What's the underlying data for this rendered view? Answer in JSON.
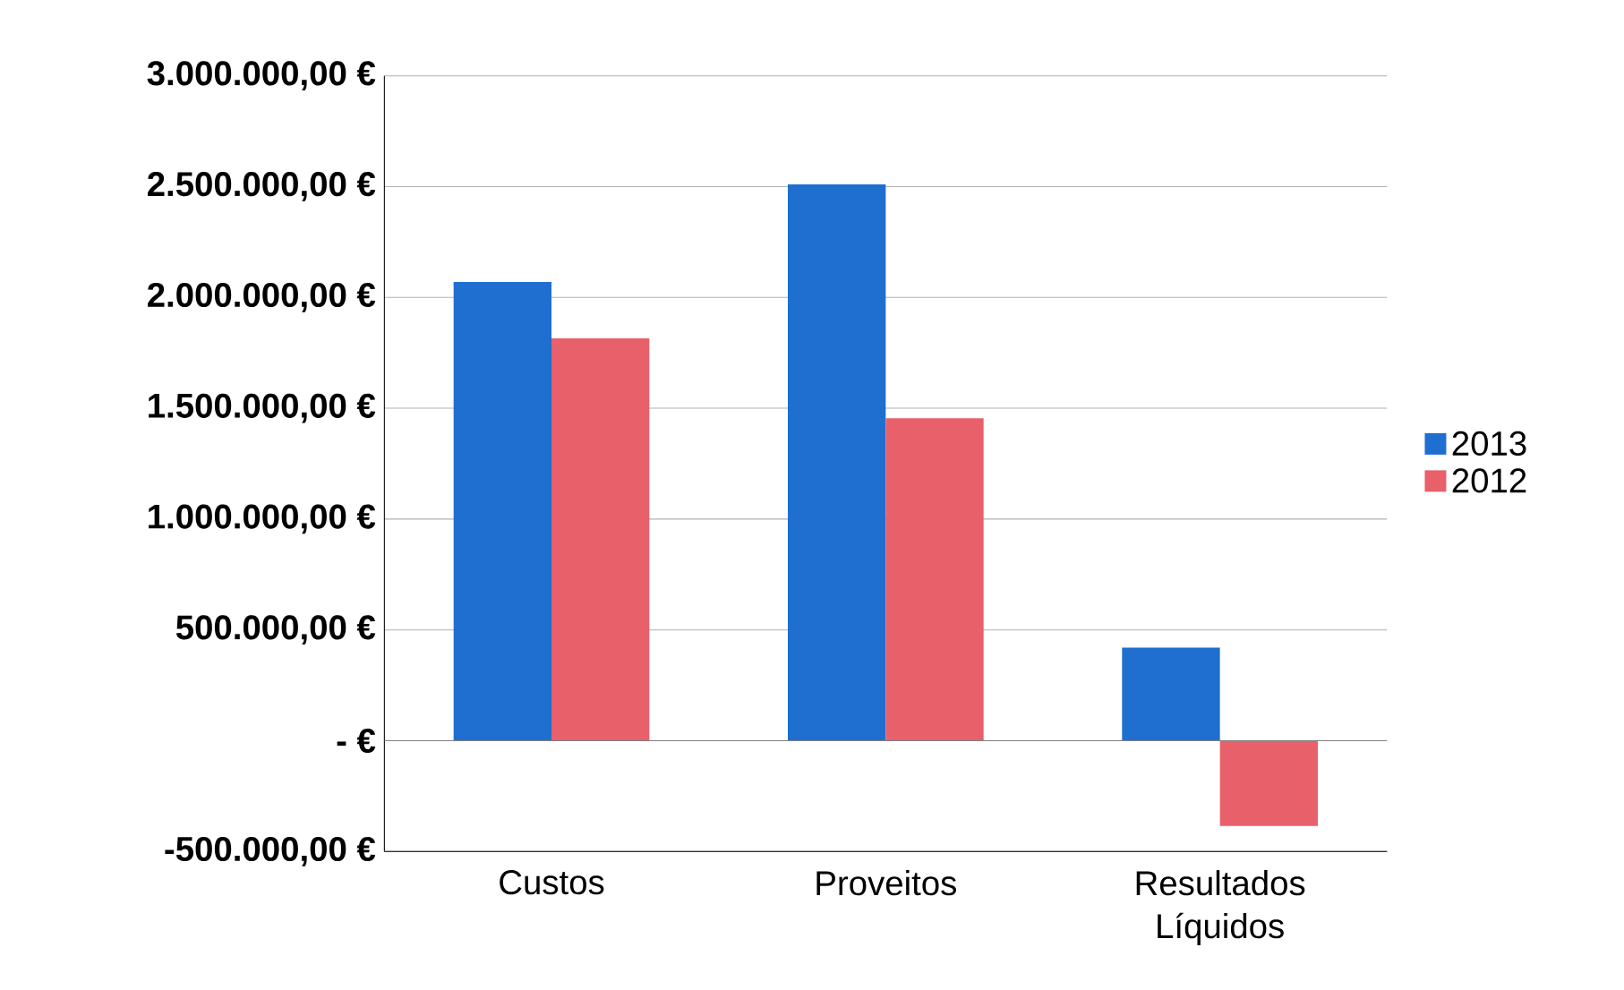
{
  "chart_data": {
    "type": "bar",
    "categories": [
      "Custos",
      "Proveitos",
      "Resultados Líquidos"
    ],
    "series": [
      {
        "name": "2013",
        "color": "#1f6fd1",
        "values": [
          2070000,
          2510000,
          420000
        ]
      },
      {
        "name": "2012",
        "color": "#e8606a",
        "values": [
          1815000,
          1455000,
          -385000
        ]
      }
    ],
    "ylim": [
      -500000,
      3000000
    ],
    "yticks": [
      {
        "value": -500000,
        "label": "-500.000,00 €"
      },
      {
        "value": 0,
        "label": "-   €"
      },
      {
        "value": 500000,
        "label": "500.000,00 €"
      },
      {
        "value": 1000000,
        "label": "1.000.000,00 €"
      },
      {
        "value": 1500000,
        "label": "1.500.000,00 €"
      },
      {
        "value": 2000000,
        "label": "2.000.000,00 €"
      },
      {
        "value": 2500000,
        "label": "2.500.000,00 €"
      },
      {
        "value": 3000000,
        "label": "3.000.000,00 €"
      }
    ],
    "grid": "y",
    "legend": "right"
  }
}
